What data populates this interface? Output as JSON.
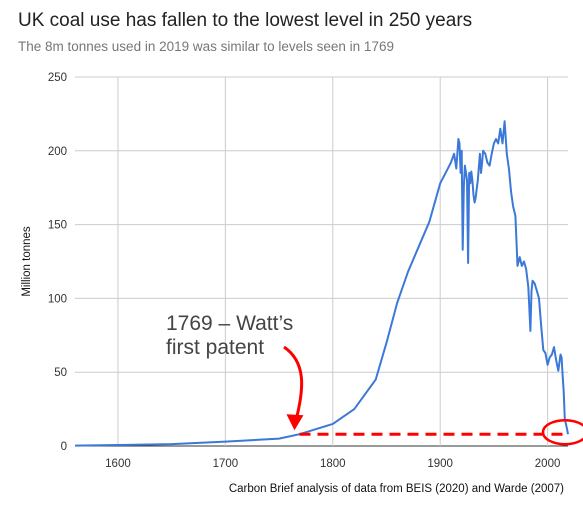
{
  "chart_data": {
    "type": "line",
    "title": "UK coal use has fallen to the lowest level in 250 years",
    "subtitle": "The 8m tonnes used in 2019 was similar to levels seen in 1769",
    "source": "Carbon Brief analysis of data from BEIS (2020) and Warde (2007)",
    "xlabel": "",
    "ylabel": "Million tonnes",
    "xlim": [
      1560,
      2019
    ],
    "ylim": [
      0,
      250
    ],
    "x_ticks": [
      1600,
      1700,
      1800,
      1900,
      2000
    ],
    "y_ticks": [
      0,
      50,
      100,
      150,
      200,
      250
    ],
    "grid": true,
    "legend": "none",
    "line_color": "#3c78d8",
    "annotation_color": "#ff0000",
    "series": [
      {
        "x": [
          1560,
          1600,
          1650,
          1700,
          1750,
          1769,
          1800,
          1820,
          1840,
          1850,
          1860,
          1870,
          1880,
          1890,
          1900,
          1905,
          1910,
          1913,
          1915,
          1917,
          1918,
          1919,
          1920,
          1921,
          1922,
          1923,
          1924,
          1925,
          1926,
          1927,
          1928,
          1929,
          1930,
          1931,
          1932,
          1933,
          1935,
          1937,
          1938,
          1939,
          1940,
          1942,
          1944,
          1946,
          1948,
          1950,
          1952,
          1954,
          1956,
          1958,
          1960,
          1962,
          1964,
          1966,
          1968,
          1970,
          1972,
          1974,
          1976,
          1978,
          1980,
          1982,
          1984,
          1985,
          1986,
          1988,
          1990,
          1992,
          1994,
          1996,
          1998,
          2000,
          2002,
          2004,
          2006,
          2008,
          2010,
          2012,
          2013,
          2014,
          2015,
          2016,
          2017,
          2018,
          2019
        ],
        "values": [
          0.3,
          0.7,
          1.3,
          3,
          5,
          8,
          15,
          25,
          45,
          70,
          97,
          118,
          135,
          152,
          178,
          185,
          192,
          198,
          188,
          208,
          205,
          185,
          200,
          133,
          175,
          190,
          185,
          180,
          124,
          185,
          178,
          186,
          180,
          170,
          165,
          168,
          180,
          198,
          185,
          192,
          200,
          198,
          192,
          190,
          198,
          205,
          208,
          205,
          215,
          205,
          220,
          198,
          188,
          172,
          162,
          156,
          122,
          128,
          122,
          125,
          120,
          108,
          78,
          105,
          112,
          110,
          105,
          100,
          82,
          65,
          63,
          55,
          60,
          62,
          67,
          58,
          51,
          62,
          60,
          48,
          37,
          18,
          15,
          12,
          8
        ]
      }
    ],
    "annotations": [
      {
        "text_lines": [
          "1769 – Watt’s",
          "first patent"
        ]
      }
    ]
  }
}
